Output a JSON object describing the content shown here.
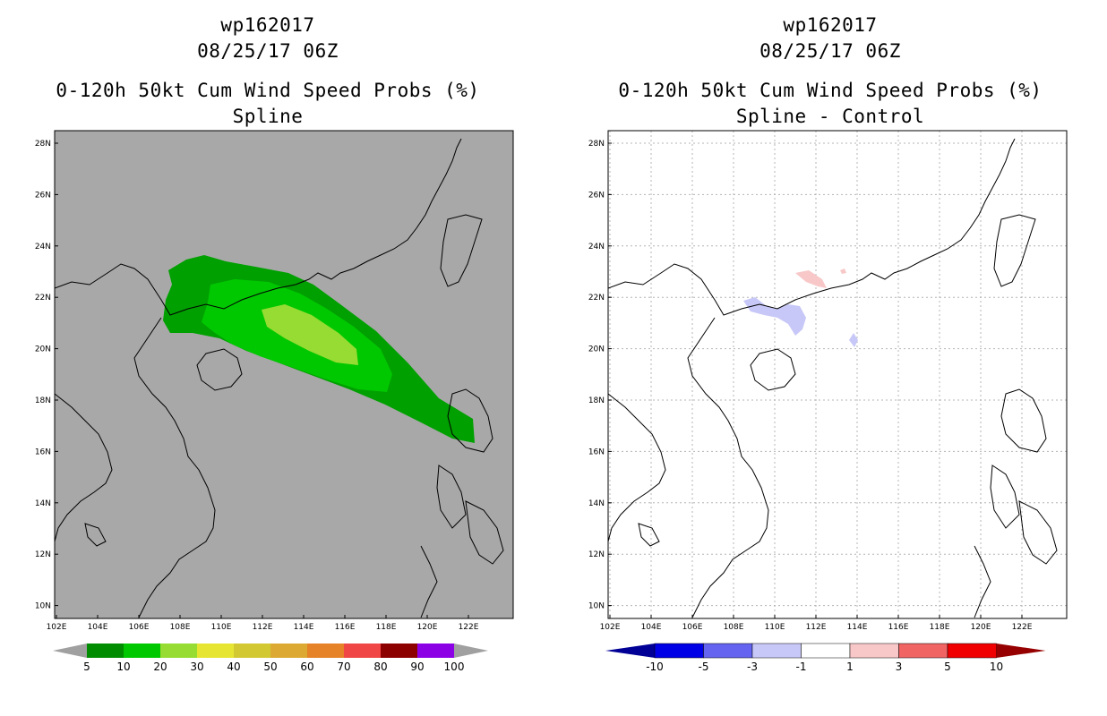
{
  "left": {
    "storm": "wp162017",
    "datetime": "08/25/17 06Z",
    "product": "0-120h 50kt Cum Wind Speed Probs (%)",
    "subtitle": "Spline",
    "colorbar": {
      "labels": [
        "5",
        "10",
        "20",
        "30",
        "40",
        "50",
        "60",
        "70",
        "80",
        "90",
        "100"
      ],
      "colors": [
        "#008c00",
        "#00c800",
        "#96dc32",
        "#e6e632",
        "#d2c832",
        "#dcaa32",
        "#e68228",
        "#f04646",
        "#8c0000",
        "#8c00e6"
      ],
      "arrow_color": "#a0a0a0"
    }
  },
  "right": {
    "storm": "wp162017",
    "datetime": "08/25/17 06Z",
    "product": "0-120h 50kt Cum Wind Speed Probs (%)",
    "subtitle": "Spline - Control",
    "colorbar": {
      "labels": [
        "-10",
        "-5",
        "-3",
        "-1",
        "1",
        "3",
        "5",
        "10"
      ],
      "colors": [
        "#0000e6",
        "#6464f0",
        "#c8c8f8",
        "#ffffff",
        "#f8c8c8",
        "#f06464",
        "#f00000"
      ],
      "left_arrow_color": "#000096",
      "right_arrow_color": "#960000"
    }
  },
  "axes": {
    "lat_labels": [
      "28N",
      "26N",
      "24N",
      "22N",
      "20N",
      "18N",
      "16N",
      "14N",
      "12N",
      "10N"
    ],
    "lon_labels": [
      "102E",
      "104E",
      "106E",
      "108E",
      "110E",
      "112E",
      "114E",
      "116E",
      "118E",
      "120E",
      "122E"
    ]
  },
  "colors": {
    "land_sea_bg_left": "#a8a8a8",
    "bg_right": "#ffffff",
    "prob_5": "#00a000",
    "prob_10": "#00c800",
    "prob_20": "#96dc32",
    "diff_neg": "#c8c8f8",
    "diff_pos": "#f8c8c8"
  }
}
